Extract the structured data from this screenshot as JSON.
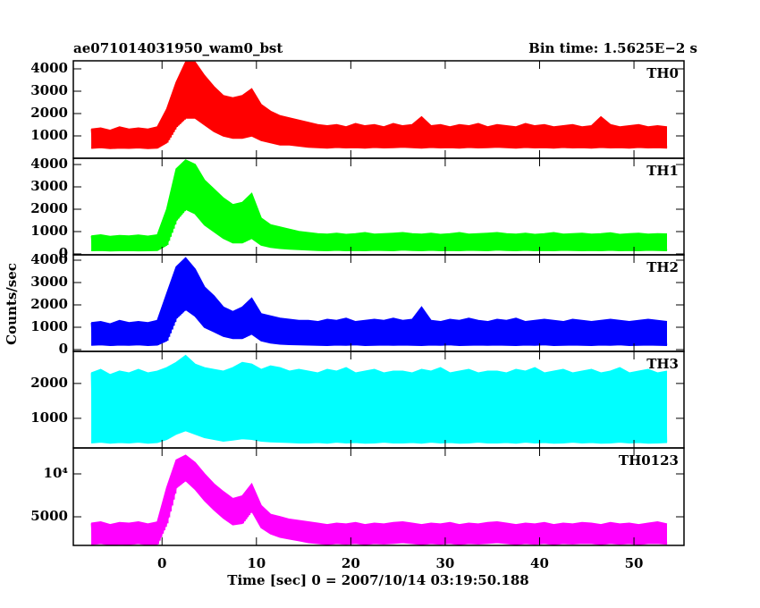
{
  "chart_data": {
    "type": "line",
    "title": "ae071014031950_wam0_bst",
    "subtitle": "Bin time: 1.5625E−2 s",
    "xlabel": "Time [sec] 0 = 2007/10/14 03:19:50.188",
    "ylabel": "Counts/sec",
    "xlim": [
      -9.4,
      55.3
    ],
    "xticks": [
      0,
      10,
      20,
      30,
      40,
      50
    ],
    "x": [
      -7.5,
      -6.5,
      -5.5,
      -4.5,
      -3.5,
      -2.5,
      -1.5,
      -0.5,
      0.5,
      1.5,
      2.5,
      3.5,
      4.5,
      5.5,
      6.5,
      7.5,
      8.5,
      9.5,
      10.5,
      11.5,
      12.5,
      13.5,
      14.5,
      15.5,
      16.5,
      17.5,
      18.5,
      19.5,
      20.5,
      21.5,
      22.5,
      23.5,
      24.5,
      25.5,
      26.5,
      27.5,
      28.5,
      29.5,
      30.5,
      31.5,
      32.5,
      33.5,
      34.5,
      35.5,
      36.5,
      37.5,
      38.5,
      39.5,
      40.5,
      41.5,
      42.5,
      43.5,
      44.5,
      45.5,
      46.5,
      47.5,
      48.5,
      49.5,
      50.5,
      51.5,
      52.5,
      53.5
    ],
    "panels": [
      {
        "name": "TH0",
        "color": "#ff0000",
        "ylim": [
          0,
          4360
        ],
        "yticks": [
          1000,
          2000,
          3000,
          4000
        ],
        "upper": [
          1300,
          1350,
          1250,
          1400,
          1300,
          1350,
          1300,
          1400,
          2200,
          3400,
          4300,
          4300,
          3700,
          3200,
          2800,
          2700,
          2800,
          3100,
          2400,
          2100,
          1900,
          1800,
          1700,
          1600,
          1500,
          1450,
          1500,
          1400,
          1550,
          1450,
          1500,
          1400,
          1550,
          1450,
          1500,
          1850,
          1450,
          1500,
          1400,
          1500,
          1450,
          1550,
          1400,
          1500,
          1450,
          1400,
          1550,
          1450,
          1500,
          1400,
          1450,
          1500,
          1400,
          1450,
          1850,
          1500,
          1400,
          1450,
          1500,
          1400,
          1450,
          1400
        ],
        "lower": [
          450,
          480,
          440,
          460,
          450,
          470,
          440,
          460,
          700,
          1400,
          1800,
          1800,
          1500,
          1200,
          1000,
          900,
          900,
          1000,
          800,
          700,
          600,
          600,
          550,
          500,
          480,
          460,
          490,
          470,
          480,
          460,
          490,
          470,
          480,
          500,
          480,
          460,
          490,
          470,
          480,
          460,
          490,
          470,
          480,
          500,
          480,
          460,
          490,
          470,
          480,
          460,
          490,
          470,
          480,
          460,
          490,
          470,
          480,
          460,
          490,
          470,
          480,
          460
        ]
      },
      {
        "name": "TH1",
        "color": "#00ff00",
        "ylim": [
          -40,
          4280
        ],
        "yticks": [
          0,
          1000,
          2000,
          3000,
          4000
        ],
        "upper": [
          800,
          850,
          780,
          820,
          800,
          840,
          790,
          850,
          2000,
          3800,
          4200,
          4000,
          3300,
          2900,
          2500,
          2200,
          2300,
          2700,
          1600,
          1300,
          1200,
          1100,
          1000,
          950,
          900,
          880,
          920,
          870,
          900,
          950,
          880,
          900,
          920,
          950,
          900,
          880,
          920,
          870,
          900,
          950,
          880,
          900,
          920,
          950,
          900,
          880,
          920,
          870,
          900,
          950,
          880,
          900,
          920,
          880,
          900,
          940,
          870,
          900,
          920,
          880,
          900,
          890
        ],
        "lower": [
          150,
          160,
          140,
          150,
          155,
          145,
          150,
          160,
          400,
          1500,
          2000,
          1800,
          1300,
          1000,
          700,
          500,
          500,
          700,
          400,
          300,
          250,
          220,
          200,
          180,
          160,
          150,
          170,
          150,
          160,
          150,
          170,
          160,
          150,
          180,
          160,
          150,
          170,
          150,
          160,
          150,
          170,
          160,
          150,
          180,
          160,
          150,
          170,
          150,
          160,
          150,
          170,
          160,
          150,
          160,
          150,
          170,
          150,
          160,
          150,
          170,
          160,
          150
        ]
      },
      {
        "name": "TH2",
        "color": "#0000ff",
        "ylim": [
          -80,
          4240
        ],
        "yticks": [
          0,
          1000,
          2000,
          3000,
          4000
        ],
        "upper": [
          1200,
          1250,
          1150,
          1300,
          1200,
          1250,
          1200,
          1300,
          2500,
          3700,
          4100,
          3600,
          2800,
          2400,
          1900,
          1700,
          1900,
          2300,
          1600,
          1500,
          1400,
          1350,
          1300,
          1300,
          1250,
          1350,
          1300,
          1400,
          1250,
          1300,
          1350,
          1300,
          1400,
          1300,
          1350,
          1900,
          1300,
          1250,
          1350,
          1300,
          1400,
          1300,
          1250,
          1350,
          1300,
          1400,
          1250,
          1300,
          1350,
          1300,
          1250,
          1350,
          1300,
          1250,
          1300,
          1350,
          1300,
          1250,
          1300,
          1350,
          1300,
          1250
        ],
        "lower": [
          200,
          220,
          190,
          210,
          200,
          220,
          190,
          210,
          400,
          1400,
          1800,
          1500,
          1000,
          800,
          600,
          500,
          500,
          700,
          400,
          300,
          250,
          230,
          220,
          210,
          200,
          190,
          210,
          200,
          220,
          190,
          200,
          210,
          200,
          210,
          200,
          190,
          210,
          200,
          220,
          190,
          200,
          210,
          200,
          210,
          200,
          190,
          210,
          200,
          220,
          190,
          200,
          210,
          200,
          190,
          210,
          200,
          220,
          190,
          200,
          210,
          200,
          190
        ]
      },
      {
        "name": "TH3",
        "color": "#00ffff",
        "ylim": [
          150,
          2920
        ],
        "yticks": [
          1000,
          2000
        ],
        "upper": [
          2300,
          2400,
          2250,
          2350,
          2300,
          2400,
          2300,
          2350,
          2450,
          2600,
          2800,
          2550,
          2450,
          2400,
          2350,
          2450,
          2600,
          2550,
          2400,
          2500,
          2450,
          2350,
          2400,
          2350,
          2300,
          2400,
          2350,
          2450,
          2300,
          2350,
          2400,
          2300,
          2350,
          2350,
          2300,
          2400,
          2350,
          2450,
          2300,
          2350,
          2400,
          2300,
          2350,
          2350,
          2300,
          2400,
          2350,
          2450,
          2300,
          2350,
          2400,
          2300,
          2350,
          2400,
          2300,
          2350,
          2450,
          2300,
          2350,
          2400,
          2300,
          2350
        ],
        "lower": [
          300,
          320,
          290,
          310,
          300,
          320,
          290,
          310,
          400,
          550,
          650,
          550,
          450,
          400,
          350,
          380,
          420,
          400,
          350,
          330,
          320,
          310,
          300,
          300,
          310,
          290,
          320,
          300,
          310,
          290,
          300,
          320,
          300,
          300,
          310,
          290,
          320,
          300,
          310,
          290,
          300,
          320,
          300,
          300,
          310,
          290,
          320,
          300,
          310,
          290,
          300,
          320,
          300,
          310,
          290,
          300,
          320,
          300,
          310,
          290,
          300,
          310
        ]
      },
      {
        "name": "TH0123",
        "color": "#ff00ff",
        "log": true,
        "ylim": [
          3150,
          15200
        ],
        "yticks": [
          5000,
          {
            "value": 10000,
            "label": "10⁴"
          }
        ],
        "upper": [
          4500,
          4600,
          4400,
          4550,
          4500,
          4600,
          4450,
          4600,
          8000,
          12500,
          13500,
          12000,
          10000,
          8500,
          7500,
          6700,
          7000,
          8500,
          6000,
          5200,
          5000,
          4800,
          4700,
          4600,
          4500,
          4400,
          4500,
          4450,
          4550,
          4400,
          4500,
          4450,
          4550,
          4600,
          4500,
          4400,
          4500,
          4450,
          4550,
          4400,
          4500,
          4450,
          4550,
          4600,
          4500,
          4400,
          4500,
          4450,
          4550,
          4400,
          4500,
          4450,
          4550,
          4500,
          4400,
          4550,
          4450,
          4500,
          4400,
          4500,
          4600,
          4450
        ],
        "lower": [
          3200,
          3250,
          3180,
          3220,
          3200,
          3250,
          3180,
          3220,
          4500,
          8000,
          9000,
          7800,
          6500,
          5600,
          4900,
          4400,
          4500,
          5500,
          4200,
          3800,
          3600,
          3500,
          3400,
          3300,
          3250,
          3200,
          3250,
          3220,
          3260,
          3200,
          3250,
          3230,
          3260,
          3300,
          3250,
          3200,
          3250,
          3220,
          3260,
          3200,
          3250,
          3230,
          3260,
          3300,
          3250,
          3200,
          3250,
          3220,
          3260,
          3200,
          3250,
          3230,
          3260,
          3250,
          3200,
          3260,
          3220,
          3250,
          3200,
          3250,
          3260,
          3220
        ]
      }
    ]
  }
}
